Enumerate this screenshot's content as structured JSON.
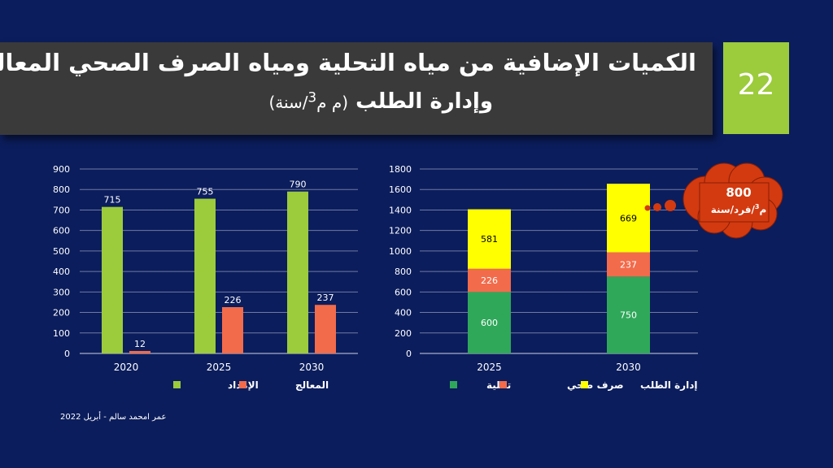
{
  "slide": {
    "title_line1": "الكميات الإضافية من مياه التحلية ومياه الصرف الصحي المعالجة",
    "title_line2": "وإدارة الطلب",
    "title_unit_pre": "(م م",
    "title_unit_sup": "3",
    "title_unit_post": "/سنة)",
    "number": "22",
    "footer": "عمر امحمد سالم - أبريل 2022",
    "callout_value": "800",
    "callout_unit_pre": "م",
    "callout_unit_sup": "3",
    "callout_unit_post": "/فرد/سنة"
  },
  "colors": {
    "background": "#0b1d5c",
    "green_bar": "#9ccb3b",
    "orange_bar": "#f26b4b",
    "desal": "#2fa85a",
    "demand": "#ffff00",
    "callout": "#d33a10"
  },
  "chart_data": [
    {
      "type": "bar",
      "categories": [
        "2020",
        "2025",
        "2030"
      ],
      "series": [
        {
          "name": "الإمداد",
          "values": [
            715,
            755,
            790
          ]
        },
        {
          "name": "المعالج",
          "values": [
            12,
            226,
            237
          ]
        }
      ],
      "ylim": [
        0,
        900
      ],
      "yticks": [
        0,
        100,
        200,
        300,
        400,
        500,
        600,
        700,
        800,
        900
      ],
      "grid": true,
      "legend": "bottom"
    },
    {
      "type": "bar",
      "stacked": true,
      "categories": [
        "2025",
        "2030"
      ],
      "series": [
        {
          "name": "تحلية",
          "values": [
            600,
            750
          ]
        },
        {
          "name": "صرف صحي",
          "values": [
            226,
            237
          ]
        },
        {
          "name": "إدارة الطلب",
          "values": [
            581,
            669
          ]
        }
      ],
      "ylim": [
        0,
        1800
      ],
      "yticks": [
        0,
        200,
        400,
        600,
        800,
        1000,
        1200,
        1400,
        1600,
        1800
      ],
      "grid": true,
      "legend": "bottom"
    }
  ]
}
